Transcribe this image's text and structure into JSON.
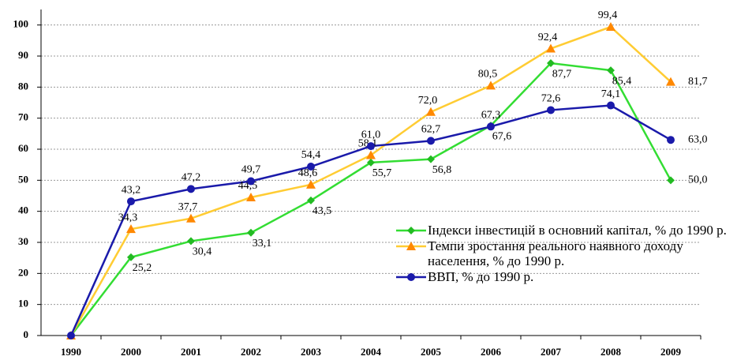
{
  "chart_data": {
    "type": "line",
    "categories": [
      "1990",
      "2000",
      "2001",
      "2002",
      "2003",
      "2004",
      "2005",
      "2006",
      "2007",
      "2008",
      "2009"
    ],
    "series": [
      {
        "name": "Індекси інвестицій в основний капітал, % до 1990 р.",
        "color": "#33dd33",
        "marker": "diamond",
        "marker_color": "#22bb22",
        "values": [
          0,
          25.2,
          30.4,
          33.1,
          43.5,
          55.7,
          56.8,
          67.6,
          87.7,
          85.4,
          50.0
        ],
        "value_labels": [
          null,
          "25,2",
          "30,4",
          "33,1",
          "43,5",
          "55,7",
          "56,8",
          "67,6",
          "87,7",
          "85,4",
          "50,0"
        ]
      },
      {
        "name": "Темпи зростання реального наявного доходу населення, % до 1990 р.",
        "color": "#ffcc33",
        "marker": "triangle",
        "marker_color": "#ff8800",
        "values": [
          0,
          34.3,
          37.7,
          44.5,
          48.6,
          58.1,
          72.0,
          80.5,
          92.4,
          99.4,
          81.7
        ],
        "value_labels": [
          null,
          "34,3",
          "37,7",
          "44,5",
          "48,6",
          "58,1",
          "72,0",
          "80,5",
          "92,4",
          "99,4",
          "81,7"
        ]
      },
      {
        "name": "ВВП, % до 1990 р.",
        "color": "#1a1aaa",
        "marker": "circle",
        "marker_color": "#1a1aaa",
        "values": [
          0,
          43.2,
          47.2,
          49.7,
          54.4,
          61.0,
          62.7,
          67.3,
          72.6,
          74.1,
          63.0
        ],
        "value_labels": [
          null,
          "43,2",
          "47,2",
          "49,7",
          "54,4",
          "61,0",
          "62,7",
          "67,3",
          "72,6",
          "74,1",
          "63,0"
        ]
      }
    ],
    "ylim": [
      0,
      105
    ],
    "yticks": [
      0,
      10,
      20,
      30,
      40,
      50,
      60,
      70,
      80,
      90,
      100
    ],
    "grid": true,
    "legend": "lower right"
  }
}
